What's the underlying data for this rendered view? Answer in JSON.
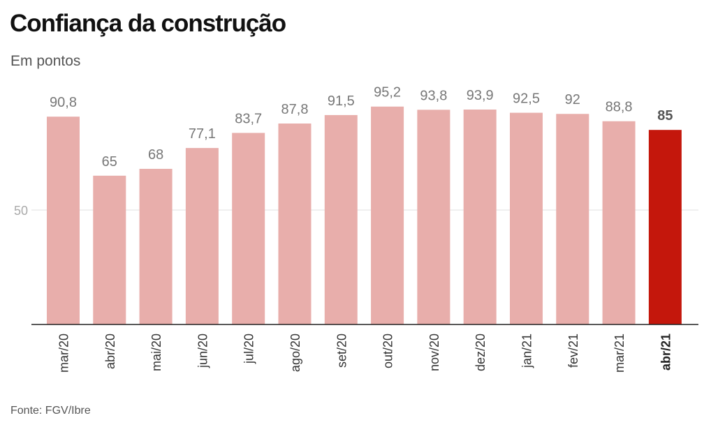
{
  "chart_data": {
    "type": "bar",
    "title": "Confiança da construção",
    "subtitle": "Em pontos",
    "source": "Fonte: FGV/Ibre",
    "categories": [
      "mar/20",
      "abr/20",
      "mai/20",
      "jun/20",
      "jul/20",
      "ago/20",
      "set/20",
      "out/20",
      "nov/20",
      "dez/20",
      "jan/21",
      "fev/21",
      "mar/21",
      "abr/21"
    ],
    "values": [
      90.8,
      65,
      68,
      77.1,
      83.7,
      87.8,
      91.5,
      95.2,
      93.8,
      93.9,
      92.5,
      92,
      88.8,
      85
    ],
    "value_labels": [
      "90,8",
      "65",
      "68",
      "77,1",
      "83,7",
      "87,8",
      "91,5",
      "95,2",
      "93,8",
      "93,9",
      "92,5",
      "92",
      "88,8",
      "85"
    ],
    "highlight_index": 13,
    "yticks": [
      50
    ],
    "ytick_labels": [
      "50"
    ],
    "ylim": [
      0,
      100
    ],
    "grid": true,
    "colors": {
      "bar": "#e8aeab",
      "highlight": "#c4170c",
      "label": "#777777",
      "highlight_label": "#555555"
    }
  }
}
